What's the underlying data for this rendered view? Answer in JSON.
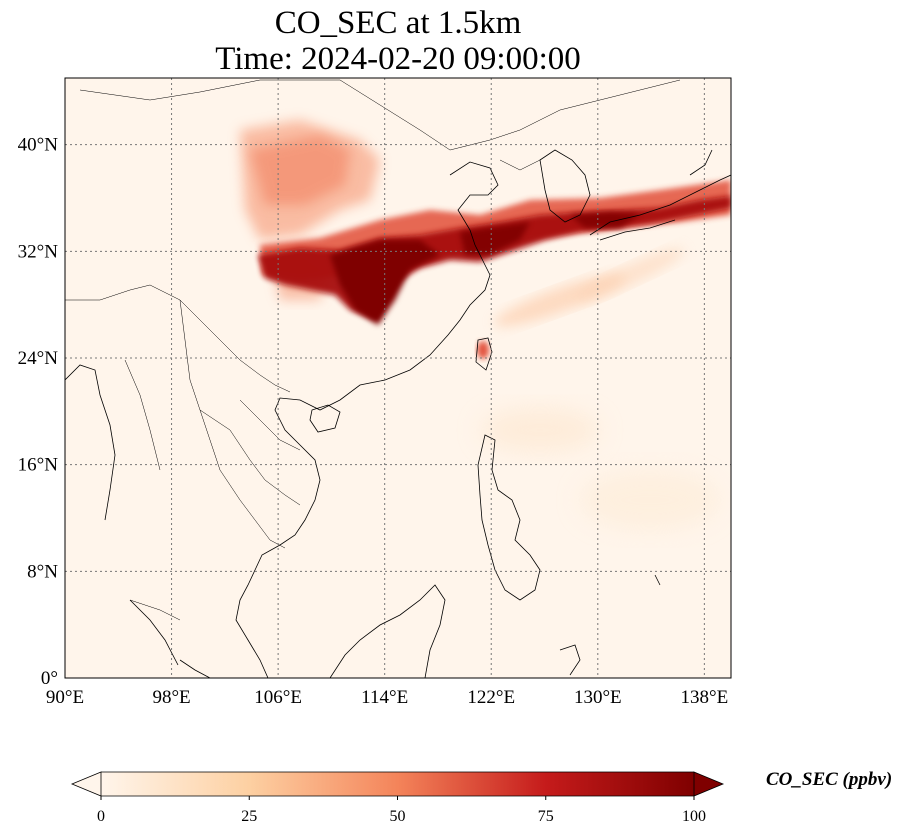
{
  "title": {
    "line1": "CO_SEC at 1.5km",
    "line2": "Time: 2024-02-20 09:00:00"
  },
  "map": {
    "lon_range": [
      90,
      140
    ],
    "lat_range": [
      0,
      45
    ],
    "lon_ticks": [
      {
        "value": 90,
        "label": "90°E"
      },
      {
        "value": 98,
        "label": "98°E"
      },
      {
        "value": 106,
        "label": "106°E"
      },
      {
        "value": 114,
        "label": "114°E"
      },
      {
        "value": 122,
        "label": "122°E"
      },
      {
        "value": 130,
        "label": "130°E"
      },
      {
        "value": 138,
        "label": "138°E"
      }
    ],
    "lat_ticks": [
      {
        "value": 0,
        "label": "0°"
      },
      {
        "value": 8,
        "label": "8°N"
      },
      {
        "value": 16,
        "label": "16°N"
      },
      {
        "value": 24,
        "label": "24°N"
      },
      {
        "value": 32,
        "label": "32°N"
      },
      {
        "value": 40,
        "label": "40°N"
      }
    ],
    "gridlines": true,
    "field_colors": {
      "background": "#fff5eb",
      "low": "#fdd0a2",
      "mid": "#f16913",
      "high": "#a50f15",
      "max": "#7f0000"
    }
  },
  "colorbar": {
    "label": "CO_SEC (ppbv)",
    "range": [
      0,
      100
    ],
    "ticks": [
      {
        "value": 0,
        "label": "0"
      },
      {
        "value": 25,
        "label": "25"
      },
      {
        "value": 50,
        "label": "50"
      },
      {
        "value": 75,
        "label": "75"
      },
      {
        "value": 100,
        "label": "100"
      }
    ],
    "colormap": "OrRd",
    "extend": "both"
  }
}
